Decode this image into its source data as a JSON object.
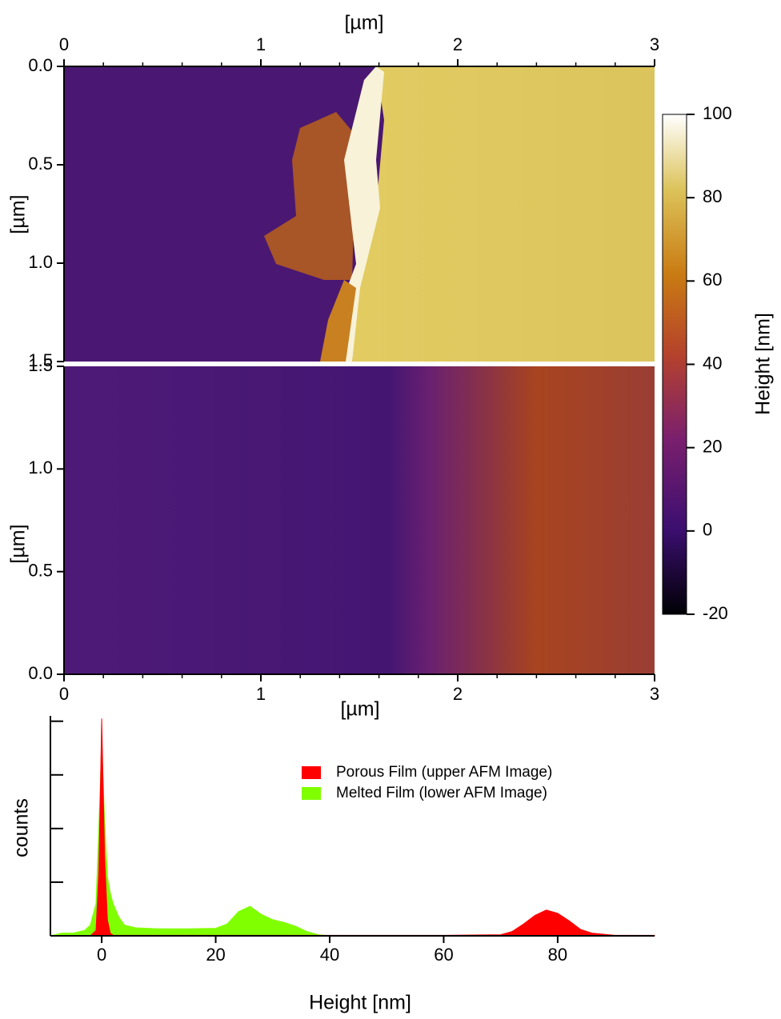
{
  "chart_data": [
    {
      "type": "image",
      "x_label": "[µm]",
      "y_label": "[µm]",
      "xlim": [
        0,
        3
      ],
      "xticks": [
        0,
        1,
        2,
        3
      ],
      "ylim": [
        0,
        1.5
      ],
      "y_reversed": true,
      "yticks": [
        {
          "value": 0,
          "label": "0.0"
        },
        0.5,
        {
          "value": 1,
          "label": "1.0"
        },
        1.5
      ]
    },
    {
      "type": "image",
      "x_label": "[µm]",
      "y_label": "[µm]",
      "xlim": [
        0,
        3
      ],
      "xticks": [
        0,
        1,
        2,
        3
      ],
      "ylim": [
        0,
        1.5
      ],
      "y_reversed": false,
      "yticks": [
        {
          "value": 0,
          "label": "0.0"
        },
        0.5,
        {
          "value": 1,
          "label": "1.0"
        },
        1.5
      ]
    },
    {
      "type": "colorbar",
      "label": "Height [nm]",
      "lim": [
        -20,
        100
      ],
      "ticks": [
        -20,
        0,
        20,
        40,
        60,
        80,
        100
      ]
    },
    {
      "type": "area",
      "x_label": "Height [nm]",
      "y_label": "counts",
      "xlim": [
        -9,
        97
      ],
      "xticks": [
        0,
        20,
        40,
        60,
        80
      ],
      "ylim": [
        0,
        4.1
      ],
      "yticks": [
        0,
        1,
        2,
        3,
        4
      ],
      "x": [
        -9,
        -7,
        -5,
        -3,
        -2,
        -1,
        -0.5,
        0,
        0.5,
        1,
        1.5,
        2,
        3,
        4,
        6,
        10,
        15,
        20,
        22,
        24,
        26,
        28,
        30,
        32,
        34,
        36,
        38,
        40,
        60,
        70,
        72,
        74,
        76,
        78,
        80,
        82,
        84,
        86,
        90,
        97
      ],
      "series": [
        {
          "name": "Melted Film (lower AFM Image)",
          "color": "#80ff00",
          "values": [
            0,
            0.05,
            0.05,
            0.1,
            0.2,
            0.6,
            2.0,
            3.6,
            2.2,
            1.1,
            0.8,
            0.6,
            0.35,
            0.2,
            0.15,
            0.13,
            0.13,
            0.14,
            0.22,
            0.45,
            0.55,
            0.4,
            0.3,
            0.25,
            0.18,
            0.08,
            0.02,
            0,
            0,
            0,
            0,
            0,
            0,
            0,
            0,
            0,
            0,
            0,
            0,
            0
          ]
        },
        {
          "name": "Porous Film (upper AFM Image)",
          "color": "#ff0000",
          "values": [
            0,
            0,
            0,
            0,
            0,
            0.1,
            1.2,
            4.05,
            1.5,
            0.3,
            0.05,
            0.01,
            0.01,
            0.01,
            0.01,
            0.01,
            0.01,
            0.01,
            0.01,
            0.01,
            0.01,
            0.01,
            0.01,
            0.01,
            0.01,
            0.01,
            0.01,
            0.01,
            0.01,
            0.02,
            0.08,
            0.22,
            0.38,
            0.48,
            0.42,
            0.28,
            0.12,
            0.05,
            0.01,
            0.01
          ]
        }
      ]
    }
  ]
}
